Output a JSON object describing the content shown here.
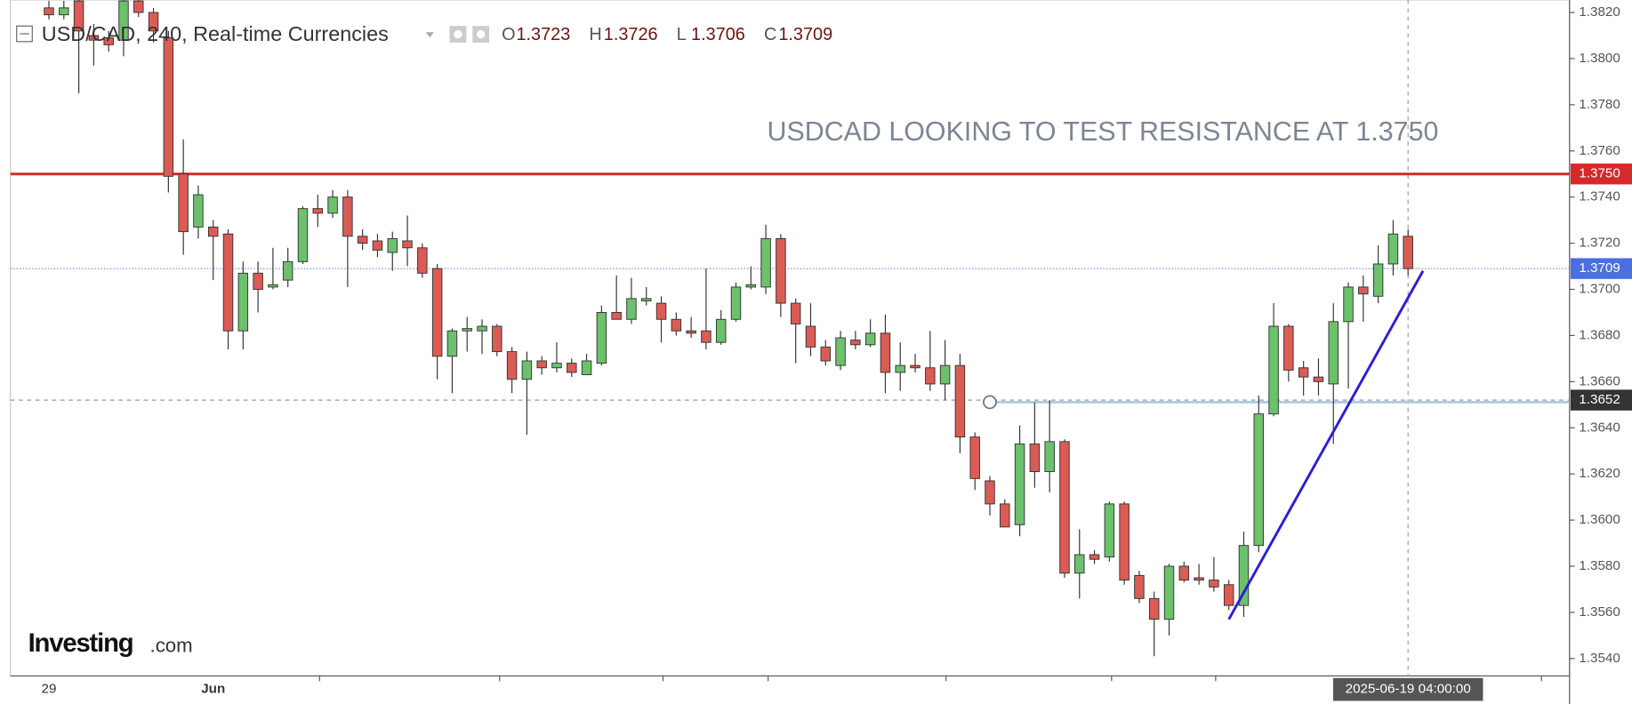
{
  "header": {
    "symbol": "USD/CAD, 240, Real-time Currencies",
    "ohlc": [
      {
        "key": "O",
        "value": 1.3723
      },
      {
        "key": "H",
        "value": 1.3726
      },
      {
        "key": "L",
        "value": 1.3706
      },
      {
        "key": "C",
        "value": 1.3709
      }
    ]
  },
  "logo": {
    "main": "Investing",
    "suffix": ".com"
  },
  "chart_data": {
    "type": "candlestick",
    "annotation": "USDCAD LOOKING TO TEST RESISTANCE AT 1.3750",
    "categories": [
      "29",
      null,
      null,
      null,
      null,
      null,
      null,
      null,
      null,
      null,
      null,
      "Jun",
      null,
      null,
      null,
      null,
      null,
      null,
      null,
      null,
      null,
      null,
      null,
      null,
      null,
      null,
      null,
      null,
      null,
      null,
      null,
      null,
      null,
      null,
      null,
      null,
      null,
      null,
      null,
      null,
      null,
      null,
      null,
      null,
      null,
      null,
      null,
      null,
      null,
      null,
      null,
      null,
      null,
      null,
      null,
      null,
      null,
      null,
      null,
      null,
      null,
      null,
      null,
      null,
      null,
      null,
      null,
      null,
      null,
      null,
      null,
      null,
      null,
      null,
      null,
      null,
      null,
      null,
      null,
      null,
      null,
      null,
      null,
      null,
      null,
      null,
      null,
      null,
      null,
      null,
      null,
      null
    ],
    "up_color": "#6cc16c",
    "down_color": "#db5c55",
    "open": [
      1.3822,
      1.3819,
      1.3825,
      1.381,
      1.3809,
      1.3808,
      1.3825,
      1.382,
      1.3809,
      1.375,
      1.3727,
      1.3727,
      1.3724,
      1.3682,
      1.3707,
      1.3701,
      1.3704,
      1.3712,
      1.3735,
      1.3733,
      1.374,
      1.3723,
      1.3721,
      1.3716,
      1.3721,
      1.3718,
      1.3709,
      1.3671,
      1.3682,
      1.3682,
      1.3684,
      1.3673,
      1.3661,
      1.3669,
      1.3666,
      1.3668,
      1.3663,
      1.3668,
      1.369,
      1.3687,
      1.3695,
      1.3694,
      1.3687,
      1.3682,
      1.3682,
      1.3677,
      1.3687,
      1.3701,
      1.3701,
      1.3722,
      1.3694,
      1.3684,
      1.3675,
      1.3667,
      1.3678,
      1.3676,
      1.3681,
      1.3664,
      1.3667,
      1.3666,
      1.3659,
      1.3667,
      1.3636,
      1.3617,
      1.3607,
      1.3598,
      1.3633,
      1.3621,
      1.3634,
      1.3577,
      1.3585,
      1.3584,
      1.3607,
      1.3576,
      1.3566,
      1.3557,
      1.358,
      1.3575,
      1.3574,
      1.3572,
      1.3563,
      1.3589,
      1.3646,
      1.3684,
      1.3666,
      1.3662,
      1.3659,
      1.3686,
      1.3701,
      1.3697,
      1.3711,
      1.3723
    ],
    "high": [
      1.3825,
      1.3825,
      1.3826,
      1.3815,
      1.3812,
      1.3826,
      1.3826,
      1.3822,
      1.3812,
      1.3765,
      1.3745,
      1.373,
      1.3726,
      1.3712,
      1.3712,
      1.3718,
      1.3718,
      1.3736,
      1.3741,
      1.3743,
      1.3743,
      1.3726,
      1.3724,
      1.3725,
      1.3732,
      1.372,
      1.3711,
      1.3683,
      1.3688,
      1.3687,
      1.3685,
      1.3675,
      1.3673,
      1.3671,
      1.3677,
      1.367,
      1.3672,
      1.3693,
      1.3706,
      1.3705,
      1.3701,
      1.3697,
      1.369,
      1.3688,
      1.3709,
      1.3691,
      1.3703,
      1.371,
      1.3728,
      1.3724,
      1.3696,
      1.3694,
      1.3678,
      1.3682,
      1.3682,
      1.3687,
      1.3689,
      1.3677,
      1.3672,
      1.3682,
      1.3678,
      1.3672,
      1.3638,
      1.3619,
      1.3609,
      1.3641,
      1.3651,
      1.3652,
      1.3635,
      1.3596,
      1.3587,
      1.3608,
      1.3608,
      1.3578,
      1.3569,
      1.3581,
      1.3582,
      1.3581,
      1.3584,
      1.3574,
      1.3595,
      1.3654,
      1.3694,
      1.3685,
      1.3669,
      1.367,
      1.3694,
      1.3703,
      1.3706,
      1.3719,
      1.373,
      1.3726
    ],
    "low": [
      1.3817,
      1.3817,
      1.3785,
      1.3797,
      1.3803,
      1.3801,
      1.3818,
      1.3807,
      1.3742,
      1.3715,
      1.3722,
      1.3704,
      1.3674,
      1.3674,
      1.369,
      1.37,
      1.3701,
      1.3711,
      1.3727,
      1.3731,
      1.3701,
      1.3717,
      1.3714,
      1.3708,
      1.371,
      1.3705,
      1.3661,
      1.3655,
      1.3673,
      1.3672,
      1.3671,
      1.3655,
      1.3637,
      1.3663,
      1.3664,
      1.3662,
      1.3663,
      1.3667,
      1.3687,
      1.3685,
      1.3693,
      1.3677,
      1.368,
      1.3679,
      1.3674,
      1.3676,
      1.3686,
      1.37,
      1.3698,
      1.3688,
      1.3668,
      1.3671,
      1.3667,
      1.3665,
      1.3674,
      1.3675,
      1.3655,
      1.3656,
      1.3664,
      1.3656,
      1.3652,
      1.3629,
      1.3613,
      1.3602,
      1.3597,
      1.3593,
      1.3614,
      1.3612,
      1.3575,
      1.3566,
      1.3581,
      1.3582,
      1.3572,
      1.3564,
      1.3541,
      1.355,
      1.3573,
      1.3572,
      1.3569,
      1.3561,
      1.3558,
      1.3586,
      1.3645,
      1.366,
      1.3654,
      1.3654,
      1.3633,
      1.3657,
      1.3686,
      1.3694,
      1.3706,
      1.3706
    ],
    "close": [
      1.3819,
      1.3822,
      1.3812,
      1.3808,
      1.3806,
      1.3825,
      1.382,
      1.3812,
      1.3749,
      1.3725,
      1.3741,
      1.3723,
      1.3682,
      1.3707,
      1.37,
      1.3702,
      1.3712,
      1.3735,
      1.3733,
      1.374,
      1.3723,
      1.372,
      1.3717,
      1.3722,
      1.3718,
      1.3707,
      1.3671,
      1.3682,
      1.3683,
      1.3684,
      1.3673,
      1.3661,
      1.3669,
      1.3666,
      1.3668,
      1.3664,
      1.3669,
      1.369,
      1.3687,
      1.3696,
      1.3696,
      1.3687,
      1.3682,
      1.3681,
      1.3677,
      1.3687,
      1.3701,
      1.3702,
      1.3722,
      1.3694,
      1.3685,
      1.3675,
      1.3669,
      1.3679,
      1.3676,
      1.3681,
      1.3664,
      1.3667,
      1.3666,
      1.3659,
      1.3667,
      1.3636,
      1.3618,
      1.3607,
      1.3597,
      1.3633,
      1.3621,
      1.3634,
      1.3577,
      1.3585,
      1.3583,
      1.3607,
      1.3574,
      1.3566,
      1.3557,
      1.358,
      1.3574,
      1.3574,
      1.3571,
      1.3563,
      1.3589,
      1.3646,
      1.3684,
      1.3665,
      1.3662,
      1.366,
      1.3686,
      1.3701,
      1.3698,
      1.3711,
      1.3724,
      1.3709
    ],
    "ylim": [
      1.3532,
      1.3825
    ],
    "yticks": [
      {
        "value": 1.354,
        "label": "1.3540"
      },
      {
        "value": 1.356,
        "label": "1.3560"
      },
      {
        "value": 1.358,
        "label": "1.3580"
      },
      {
        "value": 1.36,
        "label": "1.3600"
      },
      {
        "value": 1.362,
        "label": "1.3620"
      },
      {
        "value": 1.364,
        "label": "1.3640"
      },
      {
        "value": 1.366,
        "label": "1.3660"
      },
      {
        "value": 1.368,
        "label": "1.3680"
      },
      {
        "value": 1.37,
        "label": "1.3700"
      },
      {
        "value": 1.372,
        "label": "1.3720"
      },
      {
        "value": 1.374,
        "label": "1.3740"
      },
      {
        "value": 1.376,
        "label": "1.3760"
      },
      {
        "value": 1.378,
        "label": "1.3780"
      },
      {
        "value": 1.38,
        "label": "1.3800"
      },
      {
        "value": 1.382,
        "label": "1.3820"
      }
    ],
    "resistance": {
      "value": 1.375,
      "label": "1.3750",
      "color": "#d42a2a"
    },
    "last_price": {
      "value": 1.3709,
      "color": "#4a6fe0"
    },
    "crosshair": {
      "index": 91,
      "price": 1.3652,
      "label": "2025-06-19 04:00:00"
    },
    "trendline": {
      "x": [
        79,
        92
      ],
      "y": [
        1.3557,
        1.3708
      ],
      "color": "#2a1fd6"
    }
  }
}
